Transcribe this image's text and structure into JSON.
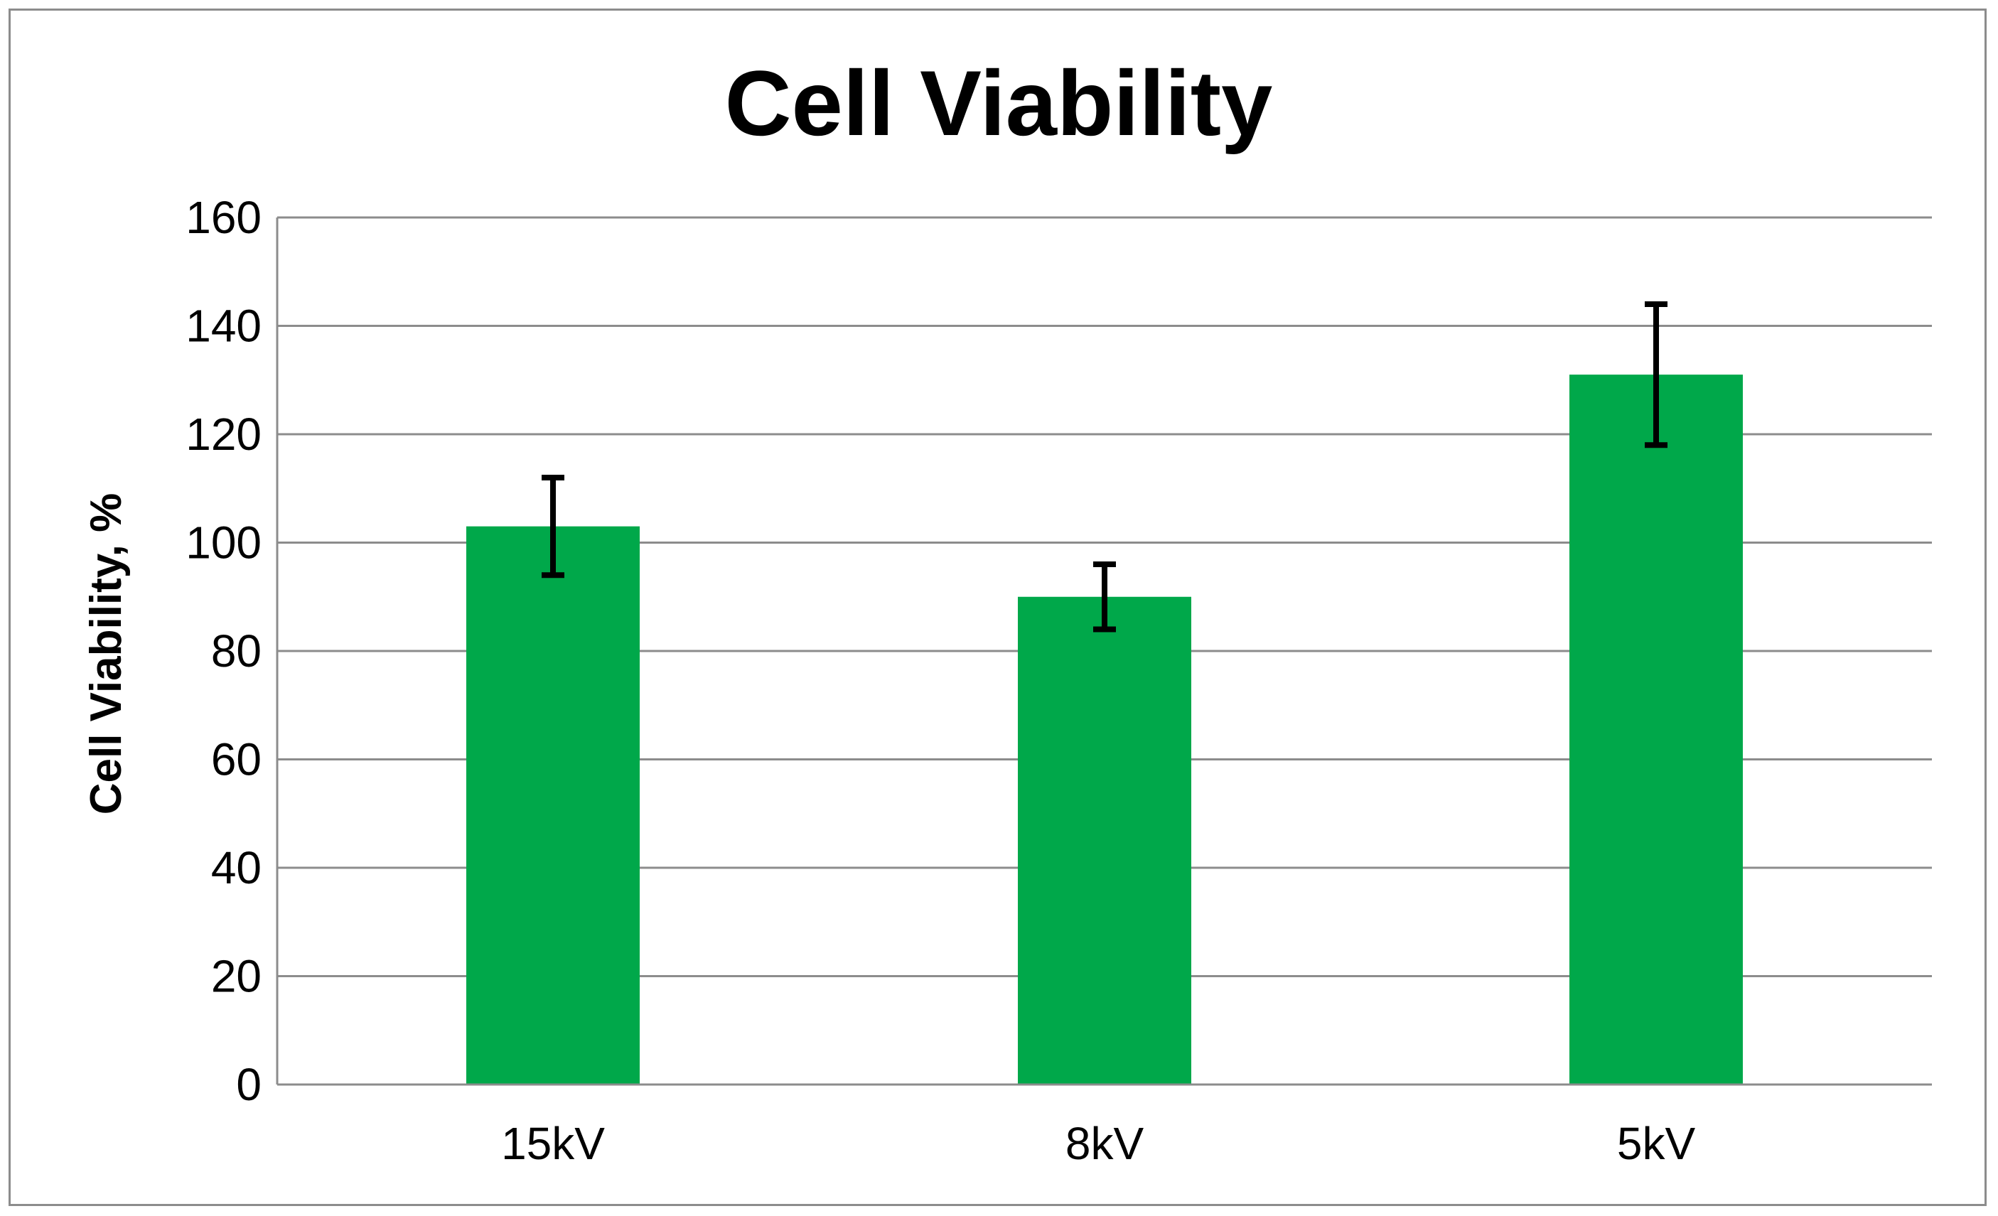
{
  "chart_data": {
    "type": "bar",
    "title": "Cell Viability",
    "xlabel": "",
    "ylabel": "Cell Viability, %",
    "categories": [
      "15kV",
      "8kV",
      "5kV"
    ],
    "values": [
      103,
      90,
      131
    ],
    "error": [
      9,
      6,
      13
    ],
    "ylim": [
      0,
      160
    ],
    "yticks": [
      "0",
      "20",
      "40",
      "60",
      "80",
      "100",
      "120",
      "140",
      "160"
    ],
    "grid": true,
    "legend": "none",
    "colors": {
      "bar": "#00a84a",
      "error_bar": "#000000",
      "grid": "#8c8c8c",
      "axis": "#8c8c8c",
      "text": "#000000"
    }
  }
}
